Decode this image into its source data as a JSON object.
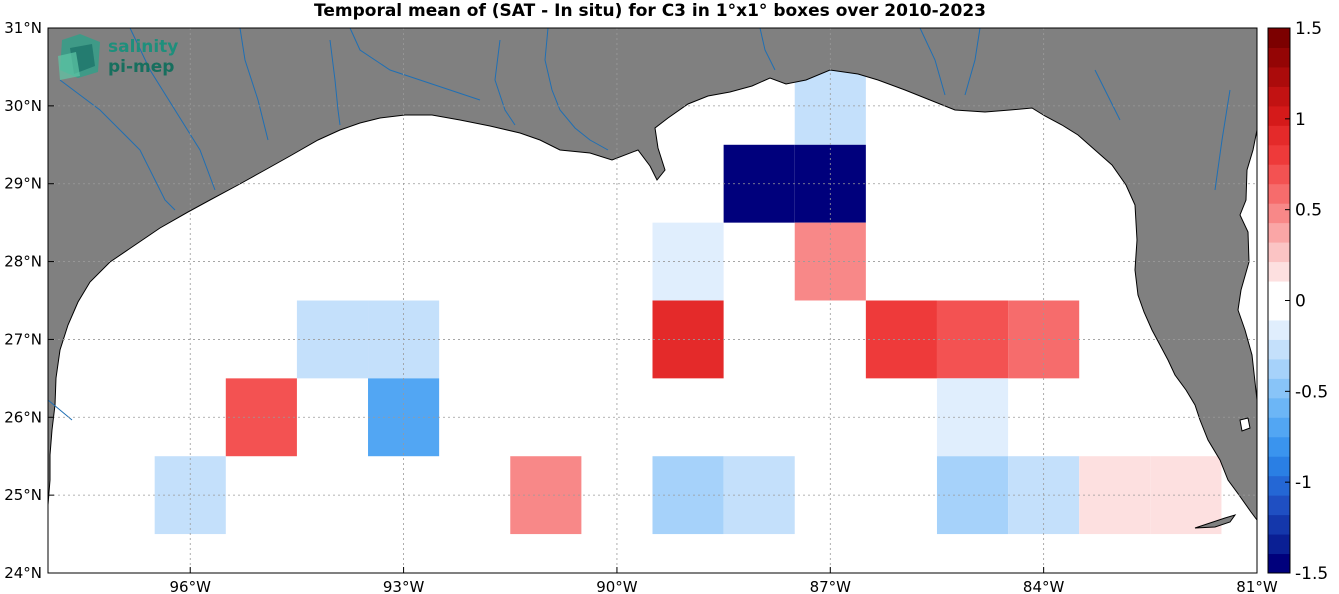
{
  "title": "Temporal mean of (SAT - In situ) for C3 in 1°x1° boxes over 2010-2023",
  "logo": {
    "line1": "salinity",
    "line2": "pi-mep",
    "icon": "salinity-pimep-logo-icon"
  },
  "colors": {
    "land": "#808080",
    "ocean": "#ffffff",
    "river": "#1f6fb4",
    "coast": "#000000",
    "grid": "#9a9a9a"
  },
  "axes": {
    "lon_range": [
      -98,
      -81
    ],
    "lat_range": [
      24,
      31
    ],
    "x_ticks": [
      {
        "value": -96,
        "label": "96°W"
      },
      {
        "value": -93,
        "label": "93°W"
      },
      {
        "value": -90,
        "label": "90°W"
      },
      {
        "value": -87,
        "label": "87°W"
      },
      {
        "value": -84,
        "label": "84°W"
      },
      {
        "value": -81,
        "label": "81°W"
      }
    ],
    "y_ticks": [
      {
        "value": 24,
        "label": "24°N"
      },
      {
        "value": 25,
        "label": "25°N"
      },
      {
        "value": 26,
        "label": "26°N"
      },
      {
        "value": 27,
        "label": "27°N"
      },
      {
        "value": 28,
        "label": "28°N"
      },
      {
        "value": 29,
        "label": "29°N"
      },
      {
        "value": 30,
        "label": "30°N"
      },
      {
        "value": 31,
        "label": "31°N"
      }
    ],
    "grid": "dotted"
  },
  "colorbar": {
    "range": [
      -1.5,
      1.5
    ],
    "ticks": [
      {
        "value": 1.5,
        "label": "1.5"
      },
      {
        "value": 1,
        "label": "1"
      },
      {
        "value": 0.5,
        "label": "0.5"
      },
      {
        "value": 0,
        "label": "0"
      },
      {
        "value": -0.5,
        "label": "-0.5"
      },
      {
        "value": -1,
        "label": "-1"
      },
      {
        "value": -1.5,
        "label": "-1.5"
      }
    ],
    "colors": [
      "#00007c",
      "#0a1f94",
      "#1437ab",
      "#1f4fc2",
      "#2467d5",
      "#2a7fe4",
      "#3a94ee",
      "#52a6f3",
      "#6cb6f6",
      "#88c4f8",
      "#a6d2fa",
      "#c4e0fb",
      "#e0eefd",
      "#ffffff",
      "#ffffff",
      "#fde0e0",
      "#fbc4c4",
      "#faa6a6",
      "#f88888",
      "#f66c6c",
      "#f35252",
      "#ee3a3a",
      "#e42a2a",
      "#d51a1a",
      "#c21212",
      "#ab0b0b",
      "#940505",
      "#7c0000"
    ]
  },
  "chart_data": {
    "type": "heatmap",
    "title": "Temporal mean of (SAT - In situ) for C3 in 1°x1° boxes over 2010-2023",
    "xlabel": "",
    "ylabel": "",
    "xlim": [
      -98,
      -81
    ],
    "ylim": [
      24,
      31
    ],
    "clim": [
      -1.5,
      1.5
    ],
    "cells": [
      {
        "lon": -87,
        "lat": 30,
        "value": -0.25
      },
      {
        "lon": -88,
        "lat": 29,
        "value": -1.5
      },
      {
        "lon": -87,
        "lat": 29,
        "value": -1.4
      },
      {
        "lon": -89,
        "lat": 28,
        "value": -0.15
      },
      {
        "lon": -87,
        "lat": 28,
        "value": 0.45
      },
      {
        "lon": -94,
        "lat": 27,
        "value": -0.25
      },
      {
        "lon": -93,
        "lat": 27,
        "value": -0.25
      },
      {
        "lon": -89,
        "lat": 27,
        "value": 0.95
      },
      {
        "lon": -86,
        "lat": 27,
        "value": 0.85
      },
      {
        "lon": -85,
        "lat": 27,
        "value": 0.7
      },
      {
        "lon": -84,
        "lat": 27,
        "value": 0.6
      },
      {
        "lon": -95,
        "lat": 26,
        "value": 0.7
      },
      {
        "lon": -93,
        "lat": 26,
        "value": -0.75
      },
      {
        "lon": -85,
        "lat": 26,
        "value": -0.15
      },
      {
        "lon": -96,
        "lat": 25,
        "value": -0.25
      },
      {
        "lon": -91,
        "lat": 25,
        "value": 0.45
      },
      {
        "lon": -89,
        "lat": 25,
        "value": -0.4
      },
      {
        "lon": -88,
        "lat": 25,
        "value": -0.25
      },
      {
        "lon": -85,
        "lat": 25,
        "value": -0.4
      },
      {
        "lon": -84,
        "lat": 25,
        "value": -0.25
      },
      {
        "lon": -83,
        "lat": 25,
        "value": 0.15
      },
      {
        "lon": -82,
        "lat": 25,
        "value": 0.15
      }
    ]
  }
}
